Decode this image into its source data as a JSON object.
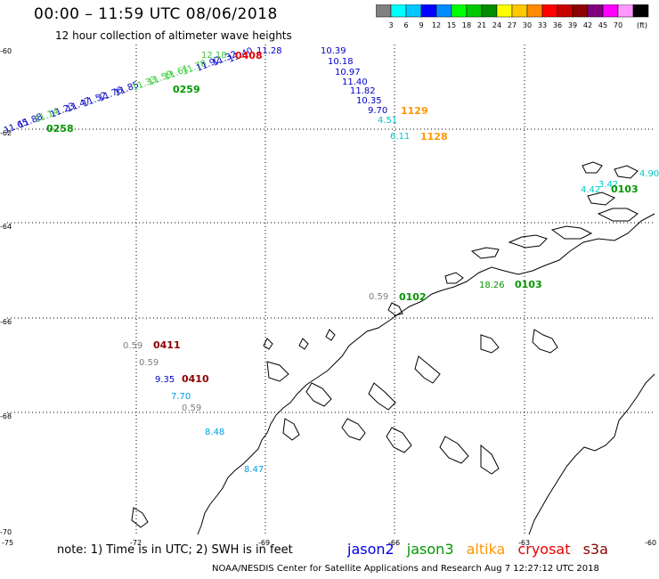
{
  "title": "00:00 – 11:59 UTC 08/06/2018",
  "subtitle": "12 hour collection of altimeter wave heights",
  "colorbar": {
    "colors": [
      "#808080",
      "#00ffff",
      "#00c8ff",
      "#0000ff",
      "#008cff",
      "#00ff00",
      "#00c800",
      "#008c00",
      "#ffff00",
      "#ffc800",
      "#ff8c00",
      "#ff0000",
      "#c80000",
      "#8c0000",
      "#800080",
      "#ff00ff",
      "#ff99ff",
      "#000000"
    ],
    "labels": [
      "3",
      "6",
      "9",
      "12",
      "15",
      "18",
      "21",
      "24",
      "27",
      "30",
      "33",
      "36",
      "39",
      "42",
      "45",
      "70"
    ],
    "unit": "(ft)"
  },
  "lat_labels": [
    "-60",
    "-62",
    "-64",
    "-66",
    "-68",
    "-70"
  ],
  "lon_labels": [
    "-75",
    "-72",
    "-69",
    "-66",
    "-63",
    "-60"
  ],
  "note": "note: 1) Time is in UTC; 2) SWH is in feet",
  "legend": [
    {
      "name": "jason2",
      "color": "#0000e6"
    },
    {
      "name": "jason3",
      "color": "#009600"
    },
    {
      "name": "altika",
      "color": "#ff9600"
    },
    {
      "name": "cryosat",
      "color": "#e60000"
    },
    {
      "name": "s3a",
      "color": "#8c0000"
    }
  ],
  "credit": "NOAA/NESDIS Center for Satellite Applications and Research   Aug  7 12:27:12 UTC 2018",
  "observations": [
    {
      "text": "10.39",
      "color": "#0000c8"
    },
    {
      "text": "10.18",
      "color": "#0000c8"
    },
    {
      "text": "10.97",
      "color": "#0000c8"
    },
    {
      "text": "11.40",
      "color": "#0000c8"
    },
    {
      "text": "11.82",
      "color": "#0000c8"
    },
    {
      "text": "10.35",
      "color": "#0000c8"
    },
    {
      "text": "9.70",
      "color": "#0000c8"
    },
    {
      "text": "4.51",
      "color": "#00c8c8"
    },
    {
      "text": "6.11",
      "color": "#00c8c8"
    },
    {
      "text": "11.28",
      "color": "#0000c8"
    },
    {
      "text": "12.18",
      "color": "#33cc33"
    },
    {
      "text": "0.59",
      "color": "#808080"
    },
    {
      "text": "0.59",
      "color": "#808080"
    },
    {
      "text": "0.59",
      "color": "#808080"
    },
    {
      "text": "0.59",
      "color": "#808080"
    },
    {
      "text": "9.35",
      "color": "#0000c8"
    },
    {
      "text": "7.70",
      "color": "#00a0e6"
    },
    {
      "text": "8.48",
      "color": "#00a0e6"
    },
    {
      "text": "8.47",
      "color": "#00a0e6"
    },
    {
      "text": "4.42",
      "color": "#00c8c8"
    },
    {
      "text": "3.42",
      "color": "#00c8c8"
    },
    {
      "text": "4.90",
      "color": "#00c8c8"
    },
    {
      "text": "18.26",
      "color": "#009600"
    }
  ],
  "times": [
    {
      "text": "0408",
      "color": "#e60000"
    },
    {
      "text": "1129",
      "color": "#ff9600"
    },
    {
      "text": "1128",
      "color": "#ff9600"
    },
    {
      "text": "0259",
      "color": "#009600"
    },
    {
      "text": "0258",
      "color": "#009600"
    },
    {
      "text": "0103",
      "color": "#009600"
    },
    {
      "text": "0102",
      "color": "#009600"
    },
    {
      "text": "0103",
      "color": "#009600"
    },
    {
      "text": "0411",
      "color": "#8c0000"
    },
    {
      "text": "0410",
      "color": "#8c0000"
    }
  ]
}
